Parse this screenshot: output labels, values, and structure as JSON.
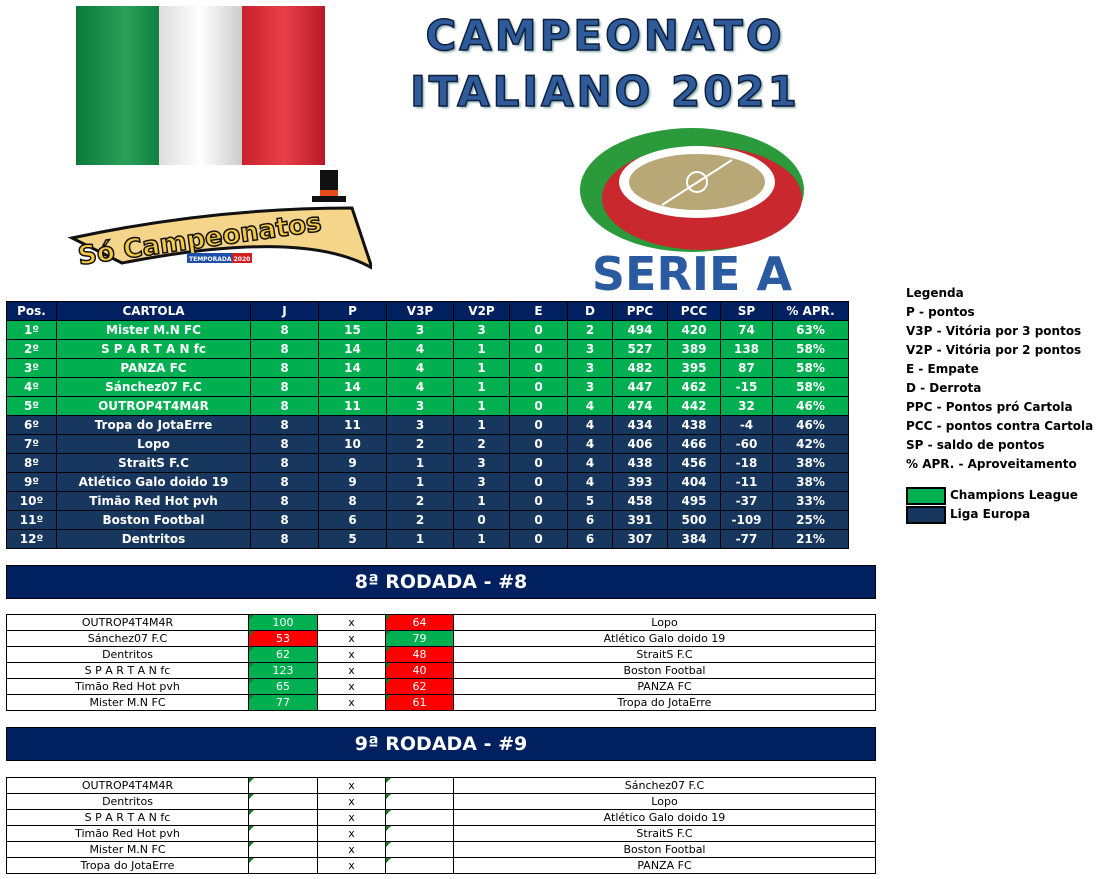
{
  "title": {
    "line1": "CAMPEONATO",
    "line2": "ITALIANO 2021"
  },
  "logos": {
    "so_campeonatos": "Só Campeonatos",
    "temporada": "TEMPORADA 2020",
    "serie_a": "SERIE A"
  },
  "colors": {
    "champions": "#00b050",
    "europa": "#17375e",
    "header": "#002060",
    "win": "#00b050",
    "lose": "#ff0000",
    "flag": [
      "#009246",
      "#f1f2f1",
      "#ce2b37"
    ]
  },
  "standings": {
    "headers": [
      "Pos.",
      "CARTOLA",
      "J",
      "P",
      "V3P",
      "V2P",
      "E",
      "D",
      "PPC",
      "PCC",
      "SP",
      "% APR."
    ],
    "rows": [
      {
        "zone": "cl",
        "cells": [
          "1º",
          "Mister M.N FC",
          "8",
          "15",
          "3",
          "3",
          "0",
          "2",
          "494",
          "420",
          "74",
          "63%"
        ]
      },
      {
        "zone": "cl",
        "cells": [
          "2º",
          "S P A R T A N fc",
          "8",
          "14",
          "4",
          "1",
          "0",
          "3",
          "527",
          "389",
          "138",
          "58%"
        ]
      },
      {
        "zone": "cl",
        "cells": [
          "3º",
          "PANZA FC",
          "8",
          "14",
          "4",
          "1",
          "0",
          "3",
          "482",
          "395",
          "87",
          "58%"
        ]
      },
      {
        "zone": "cl",
        "cells": [
          "4º",
          "Sánchez07 F.C",
          "8",
          "14",
          "4",
          "1",
          "0",
          "3",
          "447",
          "462",
          "-15",
          "58%"
        ]
      },
      {
        "zone": "cl",
        "cells": [
          "5º",
          "OUTROP4T4M4R",
          "8",
          "11",
          "3",
          "1",
          "0",
          "4",
          "474",
          "442",
          "32",
          "46%"
        ]
      },
      {
        "zone": "le",
        "cells": [
          "6º",
          "Tropa do JotaErre",
          "8",
          "11",
          "3",
          "1",
          "0",
          "4",
          "434",
          "438",
          "-4",
          "46%"
        ]
      },
      {
        "zone": "le",
        "cells": [
          "7º",
          "Lopo",
          "8",
          "10",
          "2",
          "2",
          "0",
          "4",
          "406",
          "466",
          "-60",
          "42%"
        ]
      },
      {
        "zone": "le",
        "cells": [
          "8º",
          "StraitS F.C",
          "8",
          "9",
          "1",
          "3",
          "0",
          "4",
          "438",
          "456",
          "-18",
          "38%"
        ]
      },
      {
        "zone": "le",
        "cells": [
          "9º",
          "Atlético Galo doido 19",
          "8",
          "9",
          "1",
          "3",
          "0",
          "4",
          "393",
          "404",
          "-11",
          "38%"
        ]
      },
      {
        "zone": "le",
        "cells": [
          "10º",
          "Timão Red Hot pvh",
          "8",
          "8",
          "2",
          "1",
          "0",
          "5",
          "458",
          "495",
          "-37",
          "33%"
        ]
      },
      {
        "zone": "le",
        "cells": [
          "11º",
          "Boston Footbal",
          "8",
          "6",
          "2",
          "0",
          "0",
          "6",
          "391",
          "500",
          "-109",
          "25%"
        ]
      },
      {
        "zone": "le",
        "cells": [
          "12º",
          "Dentritos",
          "8",
          "5",
          "1",
          "1",
          "0",
          "6",
          "307",
          "384",
          "-77",
          "21%"
        ]
      }
    ]
  },
  "legend": {
    "title": "Legenda",
    "items": [
      "P - pontos",
      "V3P - Vitória por 3 pontos",
      "V2P - Vitória por 2 pontos",
      "E - Empate",
      "D - Derrota",
      "PPC - Pontos pró Cartola",
      "PCC - pontos contra Cartola",
      "SP - saldo de pontos",
      "% APR. - Aproveitamento"
    ],
    "zones": [
      {
        "label": "Champions League",
        "color": "#00b050"
      },
      {
        "label": "Liga Europa",
        "color": "#17375e"
      }
    ]
  },
  "rounds": [
    {
      "title": "8ª RODADA - #8",
      "matches": [
        {
          "home": "OUTROP4T4M4R",
          "hs": "100",
          "vs": "x",
          "as": "64",
          "away": "Lopo"
        },
        {
          "home": "Sánchez07 F.C",
          "hs": "53",
          "vs": "x",
          "as": "79",
          "away": "Atlético Galo doido 19"
        },
        {
          "home": "Dentritos",
          "hs": "62",
          "vs": "x",
          "as": "48",
          "away": "StraitS F.C"
        },
        {
          "home": "S P A R T A N fc",
          "hs": "123",
          "vs": "x",
          "as": "40",
          "away": "Boston Footbal"
        },
        {
          "home": "Timão Red Hot pvh",
          "hs": "65",
          "vs": "x",
          "as": "62",
          "away": "PANZA FC"
        },
        {
          "home": "Mister M.N FC",
          "hs": "77",
          "vs": "x",
          "as": "61",
          "away": "Tropa do JotaErre"
        }
      ]
    },
    {
      "title": "9ª RODADA - #9",
      "matches": [
        {
          "home": "OUTROP4T4M4R",
          "hs": "",
          "vs": "x",
          "as": "",
          "away": "Sánchez07 F.C"
        },
        {
          "home": "Dentritos",
          "hs": "",
          "vs": "x",
          "as": "",
          "away": "Lopo"
        },
        {
          "home": "S P A R T A N fc",
          "hs": "",
          "vs": "x",
          "as": "",
          "away": "Atlético Galo doido 19"
        },
        {
          "home": "Timão Red Hot pvh",
          "hs": "",
          "vs": "x",
          "as": "",
          "away": "StraitS F.C"
        },
        {
          "home": "Mister M.N FC",
          "hs": "",
          "vs": "x",
          "as": "",
          "away": "Boston Footbal"
        },
        {
          "home": "Tropa do JotaErre",
          "hs": "",
          "vs": "x",
          "as": "",
          "away": "PANZA FC"
        }
      ]
    }
  ]
}
